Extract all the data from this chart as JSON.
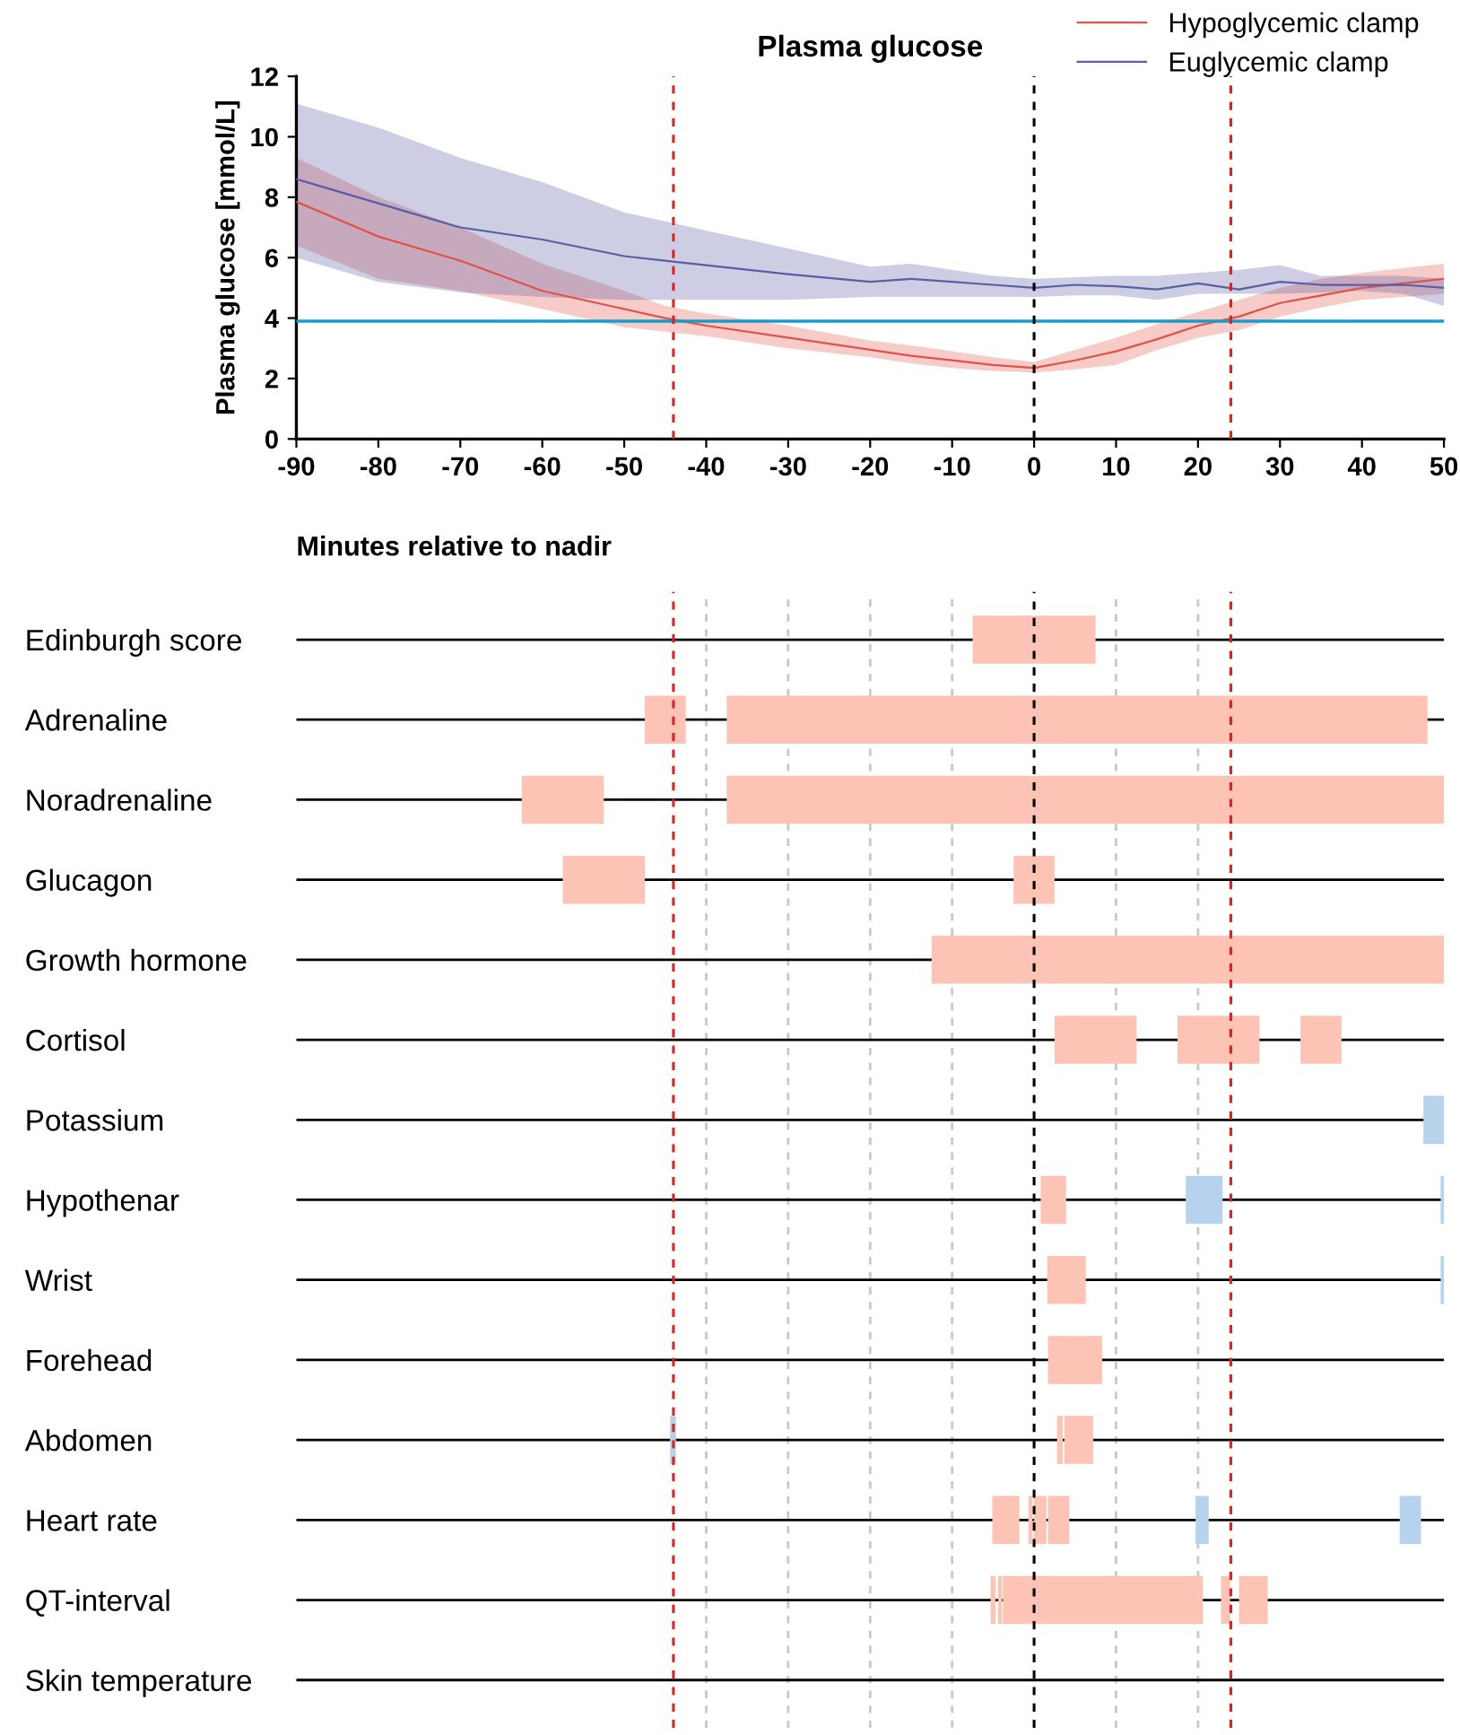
{
  "chart_data": [
    {
      "type": "line",
      "title": "Plasma glucose",
      "xlabel": "Minutes relative to nadir",
      "ylabel": "Plasma glucose [mmol/L]",
      "xlim": [
        -90,
        50
      ],
      "xticks": [
        -90,
        -80,
        -70,
        -60,
        -50,
        -40,
        -30,
        -20,
        -10,
        0,
        10,
        20,
        30,
        40,
        50
      ],
      "ylim": [
        0,
        12
      ],
      "yticks": [
        0,
        2,
        4,
        6,
        8,
        10,
        12
      ],
      "legend": "top right",
      "line_style": "solid",
      "x": [
        -90,
        -80,
        -70,
        -60,
        -50,
        -45,
        -40,
        -30,
        -20,
        -15,
        -10,
        -5,
        0,
        5,
        10,
        15,
        20,
        25,
        30,
        35,
        40,
        45,
        50
      ],
      "series": [
        {
          "name": "Hypoglycemic clamp",
          "color": "#e0524a",
          "values": [
            7.85,
            6.7,
            5.9,
            4.9,
            4.3,
            4.0,
            3.75,
            3.35,
            2.95,
            2.75,
            2.6,
            2.45,
            2.35,
            2.6,
            2.9,
            3.3,
            3.75,
            4.05,
            4.5,
            4.75,
            5.0,
            5.15,
            5.3
          ],
          "lower": [
            6.4,
            5.3,
            4.9,
            4.3,
            3.7,
            3.55,
            3.4,
            3.0,
            2.7,
            2.5,
            2.35,
            2.25,
            2.2,
            2.3,
            2.45,
            2.95,
            3.35,
            3.6,
            4.05,
            4.35,
            4.6,
            4.7,
            4.8
          ],
          "upper": [
            9.3,
            8.0,
            7.0,
            5.8,
            4.9,
            4.4,
            4.15,
            3.75,
            3.25,
            3.1,
            2.9,
            2.7,
            2.55,
            2.95,
            3.35,
            3.8,
            4.2,
            4.6,
            5.0,
            5.3,
            5.5,
            5.65,
            5.8
          ]
        },
        {
          "name": "Euglycemic clamp",
          "color": "#5b5ea6",
          "values": [
            8.6,
            7.8,
            7.0,
            6.6,
            6.05,
            5.9,
            5.75,
            5.45,
            5.2,
            5.3,
            5.2,
            5.1,
            5.0,
            5.1,
            5.05,
            4.95,
            5.15,
            4.95,
            5.2,
            5.1,
            5.1,
            5.1,
            5.0
          ],
          "lower": [
            6.0,
            5.2,
            4.85,
            4.7,
            4.6,
            4.6,
            4.6,
            4.6,
            4.7,
            4.7,
            4.7,
            4.7,
            4.7,
            4.75,
            4.75,
            4.6,
            4.8,
            4.8,
            4.8,
            4.85,
            4.9,
            4.8,
            4.4
          ],
          "upper": [
            11.1,
            10.3,
            9.3,
            8.5,
            7.5,
            7.2,
            6.9,
            6.3,
            5.7,
            5.8,
            5.6,
            5.4,
            5.3,
            5.35,
            5.4,
            5.4,
            5.5,
            5.6,
            5.75,
            5.4,
            5.4,
            5.4,
            5.3
          ]
        }
      ],
      "ref_lines": [
        {
          "axis": "y",
          "value": 3.9,
          "color": "#1a9bc9",
          "line_style": "solid"
        },
        {
          "axis": "x",
          "value": -44,
          "color": "#e02020",
          "line_style": "dashed"
        },
        {
          "axis": "x",
          "value": 0,
          "color": "#000000",
          "line_style": "dashed"
        },
        {
          "axis": "x",
          "value": 24,
          "color": "#e02020",
          "line_style": "dashed"
        }
      ]
    },
    {
      "type": "bar",
      "orientation": "horizontal",
      "categories": [
        "Edinburgh score",
        "Adrenaline",
        "Noradrenaline",
        "Glucagon",
        "Growth hormone",
        "Cortisol",
        "Potassium",
        "Hypothenar",
        "Wrist",
        "Forehead",
        "Abdomen",
        "Heart rate",
        "QT-interval",
        "Skin temperature"
      ],
      "xlim": [
        -90,
        50
      ],
      "xticks": [
        {
          "value": -40,
          "label": null
        },
        {
          "value": -30,
          "label": null
        },
        {
          "value": -20,
          "label": null
        },
        {
          "value": -10,
          "label": null
        },
        {
          "value": 10,
          "label": null
        },
        {
          "value": 20,
          "label": null
        }
      ],
      "tick_labels": "y",
      "grid": true,
      "series": [
        {
          "base": [
            -7.5,
            -47.5,
            -62.5,
            -57.5,
            -12.5,
            2.5,
            47.5,
            0.8,
            1.6,
            1.7,
            -44.4,
            -5.1,
            -5.3,
            null
          ],
          "values": [
            15,
            5,
            10,
            10,
            62.5,
            10,
            2.5,
            3.1,
            4.7,
            6.6,
            0.7,
            3.3,
            0.6,
            null
          ],
          "colors": [
            "#fdc3b5",
            "#fdc3b5",
            "#fdc3b5",
            "#fdc3b5",
            "#fdc3b5",
            "#fdc3b5",
            "#b7d2ec",
            "#fdc3b5",
            "#fdc3b5",
            "#fdc3b5",
            "#b7d2ec",
            "#fdc3b5",
            "#fdc3b5",
            "#fdc3b5"
          ]
        },
        {
          "base": [
            null,
            -37.5,
            -37.5,
            -2.5,
            null,
            17.5,
            null,
            18.5,
            49.6,
            null,
            2.8,
            -0.7,
            -4.4,
            null
          ],
          "values": [
            null,
            85.5,
            87.5,
            5,
            null,
            10,
            null,
            4.5,
            0.4,
            null,
            0.7,
            0.5,
            0.5,
            null
          ],
          "colors": [
            "#fdc3b5",
            "#fdc3b5",
            "#fdc3b5",
            "#fdc3b5",
            "#fdc3b5",
            "#fdc3b5",
            "#fdc3b5",
            "#b7d2ec",
            "#b7d2ec",
            "#fdc3b5",
            "#fdc3b5",
            "#fdc3b5",
            "#fdc3b5",
            "#fdc3b5"
          ]
        },
        {
          "base": [
            null,
            null,
            null,
            null,
            null,
            32.5,
            null,
            49.6,
            null,
            null,
            3.7,
            0,
            -3.8,
            null
          ],
          "values": [
            null,
            null,
            null,
            null,
            null,
            5,
            null,
            0.4,
            null,
            null,
            3.5,
            1.5,
            24.4,
            null
          ],
          "colors": [
            "#fdc3b5",
            "#fdc3b5",
            "#fdc3b5",
            "#fdc3b5",
            "#fdc3b5",
            "#fdc3b5",
            "#fdc3b5",
            "#b7d2ec",
            "#fdc3b5",
            "#fdc3b5",
            "#fdc3b5",
            "#fdc3b5",
            "#fdc3b5",
            "#fdc3b5"
          ]
        },
        {
          "base": [
            null,
            null,
            null,
            null,
            null,
            null,
            null,
            null,
            null,
            null,
            null,
            1.7,
            22.8,
            null
          ],
          "values": [
            null,
            null,
            null,
            null,
            null,
            null,
            null,
            null,
            null,
            null,
            null,
            2.6,
            1.1,
            null
          ],
          "colors": [
            "#fdc3b5",
            "#fdc3b5",
            "#fdc3b5",
            "#fdc3b5",
            "#fdc3b5",
            "#fdc3b5",
            "#fdc3b5",
            "#fdc3b5",
            "#fdc3b5",
            "#fdc3b5",
            "#fdc3b5",
            "#fdc3b5",
            "#fdc3b5",
            "#fdc3b5"
          ]
        },
        {
          "base": [
            null,
            null,
            null,
            null,
            null,
            null,
            null,
            null,
            null,
            null,
            null,
            19.7,
            25,
            null
          ],
          "values": [
            null,
            null,
            null,
            null,
            null,
            null,
            null,
            null,
            null,
            null,
            null,
            1.6,
            3.5,
            null
          ],
          "colors": [
            "#fdc3b5",
            "#fdc3b5",
            "#fdc3b5",
            "#fdc3b5",
            "#fdc3b5",
            "#fdc3b5",
            "#fdc3b5",
            "#fdc3b5",
            "#fdc3b5",
            "#fdc3b5",
            "#fdc3b5",
            "#b7d2ec",
            "#fdc3b5",
            "#fdc3b5"
          ]
        },
        {
          "base": [
            null,
            null,
            null,
            null,
            null,
            null,
            null,
            null,
            null,
            null,
            null,
            44.6,
            null,
            null
          ],
          "values": [
            null,
            null,
            null,
            null,
            null,
            null,
            null,
            null,
            null,
            null,
            null,
            2.6,
            null,
            null
          ],
          "colors": [
            "#fdc3b5",
            "#fdc3b5",
            "#fdc3b5",
            "#fdc3b5",
            "#fdc3b5",
            "#fdc3b5",
            "#fdc3b5",
            "#fdc3b5",
            "#fdc3b5",
            "#fdc3b5",
            "#fdc3b5",
            "#b7d2ec",
            "#fdc3b5",
            "#fdc3b5"
          ]
        }
      ],
      "ref_lines": [
        {
          "axis": "x",
          "value": -44,
          "color": "#e02020",
          "line_style": "dashed"
        },
        {
          "axis": "x",
          "value": 0,
          "color": "#000000",
          "line_style": "dashed"
        },
        {
          "axis": "x",
          "value": 24,
          "color": "#e02020",
          "line_style": "dashed"
        }
      ]
    }
  ]
}
